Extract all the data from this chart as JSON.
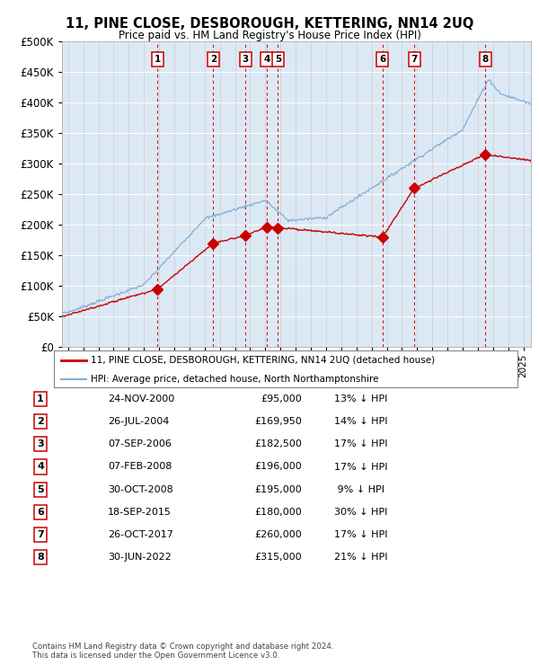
{
  "title": "11, PINE CLOSE, DESBOROUGH, KETTERING, NN14 2UQ",
  "subtitle": "Price paid vs. HM Land Registry's House Price Index (HPI)",
  "bg_color": "#dce9f5",
  "transactions": [
    {
      "num": 1,
      "date": "24-NOV-2000",
      "year": 2000.9,
      "price": 95000
    },
    {
      "num": 2,
      "date": "26-JUL-2004",
      "year": 2004.57,
      "price": 169950
    },
    {
      "num": 3,
      "date": "07-SEP-2006",
      "year": 2006.69,
      "price": 182500
    },
    {
      "num": 4,
      "date": "07-FEB-2008",
      "year": 2008.1,
      "price": 196000
    },
    {
      "num": 5,
      "date": "30-OCT-2008",
      "year": 2008.83,
      "price": 195000
    },
    {
      "num": 6,
      "date": "18-SEP-2015",
      "year": 2015.72,
      "price": 180000
    },
    {
      "num": 7,
      "date": "26-OCT-2017",
      "year": 2017.82,
      "price": 260000
    },
    {
      "num": 8,
      "date": "30-JUN-2022",
      "year": 2022.5,
      "price": 315000
    }
  ],
  "table_rows": [
    {
      "num": 1,
      "date": "24-NOV-2000",
      "price": "£95,000",
      "pct": "13% ↓ HPI"
    },
    {
      "num": 2,
      "date": "26-JUL-2004",
      "price": "£169,950",
      "pct": "14% ↓ HPI"
    },
    {
      "num": 3,
      "date": "07-SEP-2006",
      "price": "£182,500",
      "pct": "17% ↓ HPI"
    },
    {
      "num": 4,
      "date": "07-FEB-2008",
      "price": "£196,000",
      "pct": "17% ↓ HPI"
    },
    {
      "num": 5,
      "date": "30-OCT-2008",
      "price": "£195,000",
      "pct": " 9% ↓ HPI"
    },
    {
      "num": 6,
      "date": "18-SEP-2015",
      "price": "£180,000",
      "pct": "30% ↓ HPI"
    },
    {
      "num": 7,
      "date": "26-OCT-2017",
      "price": "£260,000",
      "pct": "17% ↓ HPI"
    },
    {
      "num": 8,
      "date": "30-JUN-2022",
      "price": "£315,000",
      "pct": "21% ↓ HPI"
    }
  ],
  "legend_house": "11, PINE CLOSE, DESBOROUGH, KETTERING, NN14 2UQ (detached house)",
  "legend_hpi": "HPI: Average price, detached house, North Northamptonshire",
  "footer1": "Contains HM Land Registry data © Crown copyright and database right 2024.",
  "footer2": "This data is licensed under the Open Government Licence v3.0.",
  "red_color": "#cc0000",
  "blue_color": "#7fb0d8",
  "ylim": [
    0,
    500000
  ],
  "yticks": [
    0,
    50000,
    100000,
    150000,
    200000,
    250000,
    300000,
    350000,
    400000,
    450000,
    500000
  ],
  "xlim_start": 1994.6,
  "xlim_end": 2025.5
}
